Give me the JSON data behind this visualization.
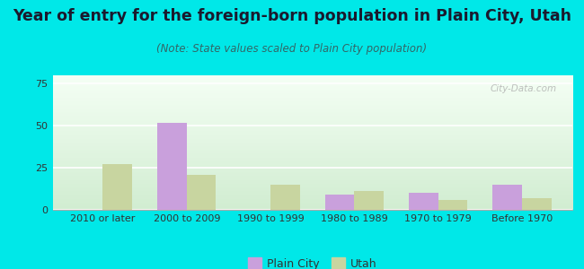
{
  "title": "Year of entry for the foreign-born population in Plain City, Utah",
  "subtitle": "(Note: State values scaled to Plain City population)",
  "categories": [
    "2010 or later",
    "2000 to 2009",
    "1990 to 1999",
    "1980 to 1989",
    "1970 to 1979",
    "Before 1970"
  ],
  "plain_city_values": [
    0,
    52,
    0,
    9,
    10,
    15
  ],
  "utah_values": [
    27,
    21,
    15,
    11,
    6,
    7
  ],
  "plain_city_color": "#c9a0dc",
  "utah_color": "#c8d5a0",
  "background_outer": "#00e8e8",
  "background_inner_top": "#f0fff0",
  "background_inner_bottom": "#d4ecd4",
  "ylim": [
    0,
    80
  ],
  "yticks": [
    0,
    25,
    50,
    75
  ],
  "bar_width": 0.35,
  "title_fontsize": 12.5,
  "subtitle_fontsize": 8.5,
  "tick_fontsize": 8,
  "legend_fontsize": 9,
  "watermark": "City-Data.com"
}
